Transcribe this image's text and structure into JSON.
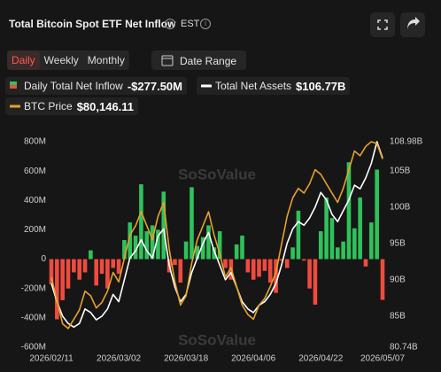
{
  "header": {
    "title": "Total Bitcoin Spot ETF Net Inflow",
    "timezone": "EST"
  },
  "tabs": [
    "Daily",
    "Weekly",
    "Monthly"
  ],
  "date_range": "Date Range",
  "legend": [
    {
      "name": "Daily Total Net Inflow",
      "value": "-$277.50M"
    },
    {
      "name": "Total Net Assets",
      "value": "$106.77B"
    },
    {
      "name": "BTC Price",
      "value": "$80,146.11"
    }
  ],
  "chart_data": {
    "type": "bar-line",
    "watermark": "SoSoValue",
    "categories": [
      "2026/02/11",
      null,
      null,
      null,
      null,
      null,
      null,
      null,
      null,
      null,
      null,
      null,
      "2026/03/02",
      null,
      null,
      null,
      null,
      null,
      null,
      null,
      null,
      null,
      null,
      null,
      "2026/03/18",
      null,
      null,
      null,
      null,
      null,
      null,
      null,
      null,
      null,
      null,
      null,
      "2026/04/06",
      null,
      null,
      null,
      null,
      null,
      null,
      null,
      null,
      null,
      null,
      null,
      "2026/04/22",
      null,
      null,
      null,
      null,
      null,
      null,
      null,
      null,
      null,
      null,
      "2026/05/07"
    ],
    "ylim": [
      -600,
      800
    ],
    "yticks": [
      {
        "value": 800,
        "label": "800M"
      },
      {
        "value": 600,
        "label": "600M"
      },
      {
        "value": 400,
        "label": "400M"
      },
      {
        "value": 200,
        "label": "200M"
      },
      0,
      {
        "value": -200,
        "label": "-200M"
      },
      {
        "value": -400,
        "label": "-400M"
      },
      {
        "value": -600,
        "label": "-600M"
      }
    ],
    "y2lim": [
      80.74,
      108.98
    ],
    "y2ticks": [
      {
        "value": 108.98,
        "label": "108.98B"
      },
      {
        "value": 105,
        "label": "105B"
      },
      {
        "value": 100,
        "label": "100B"
      },
      {
        "value": 95,
        "label": "95B"
      },
      {
        "value": 90,
        "label": "90B"
      },
      {
        "value": 85,
        "label": "85B"
      },
      {
        "value": 80.74,
        "label": "80.74B"
      }
    ],
    "y3lim": [
      60000,
      82000
    ],
    "grid": false,
    "series": [
      {
        "name": "Daily Total Net Inflow",
        "kind": "bar",
        "color": "#2fc25b",
        "negative_color": "#ef4b3f",
        "values": [
          -170,
          -410,
          -280,
          -200,
          -90,
          -140,
          -90,
          60,
          -180,
          -100,
          -200,
          -60,
          -100,
          130,
          250,
          160,
          510,
          190,
          230,
          200,
          460,
          -90,
          -40,
          -160,
          120,
          490,
          90,
          150,
          230,
          80,
          190,
          -60,
          -140,
          100,
          160,
          -90,
          -140,
          -120,
          -80,
          -160,
          -230,
          -10,
          -60,
          80,
          330,
          -10,
          -200,
          -310,
          190,
          420,
          280,
          80,
          120,
          660,
          210,
          420,
          -50,
          250,
          610,
          -277.5
        ]
      },
      {
        "name": "Total Net Assets",
        "kind": "line",
        "axis": "y2",
        "color": "#ffffff",
        "values": [
          89.5,
          87,
          85,
          84,
          83.5,
          84,
          86,
          85.5,
          84.5,
          85,
          86,
          88,
          87,
          90,
          93,
          94,
          95.5,
          94,
          93,
          96,
          97,
          92,
          89,
          87,
          88,
          91,
          93,
          95,
          96.5,
          94,
          92,
          90,
          91,
          89,
          87,
          86,
          85.5,
          86.5,
          87,
          88,
          89.5,
          92,
          95,
          97,
          98,
          97.5,
          98.5,
          100,
          102,
          101,
          99,
          98,
          99.5,
          101,
          103,
          102.5,
          104,
          106,
          108.98,
          106.77
        ]
      },
      {
        "name": "BTC Price",
        "kind": "line",
        "axis": "y3",
        "color": "#e5a22c",
        "values": [
          67500,
          65000,
          62500,
          62000,
          63000,
          64000,
          66000,
          65500,
          64200,
          64800,
          66000,
          68000,
          67000,
          69500,
          72000,
          73000,
          74500,
          73000,
          71500,
          74000,
          75500,
          70500,
          67000,
          64500,
          65500,
          69000,
          71500,
          73000,
          74500,
          72000,
          70000,
          67500,
          68500,
          66500,
          64500,
          63500,
          63000,
          64500,
          65200,
          66500,
          68000,
          71000,
          74000,
          76000,
          77000,
          76500,
          77500,
          79000,
          78500,
          77500,
          76500,
          75500,
          77000,
          79000,
          81000,
          80500,
          81500,
          82000,
          81800,
          80146.11
        ]
      }
    ]
  }
}
